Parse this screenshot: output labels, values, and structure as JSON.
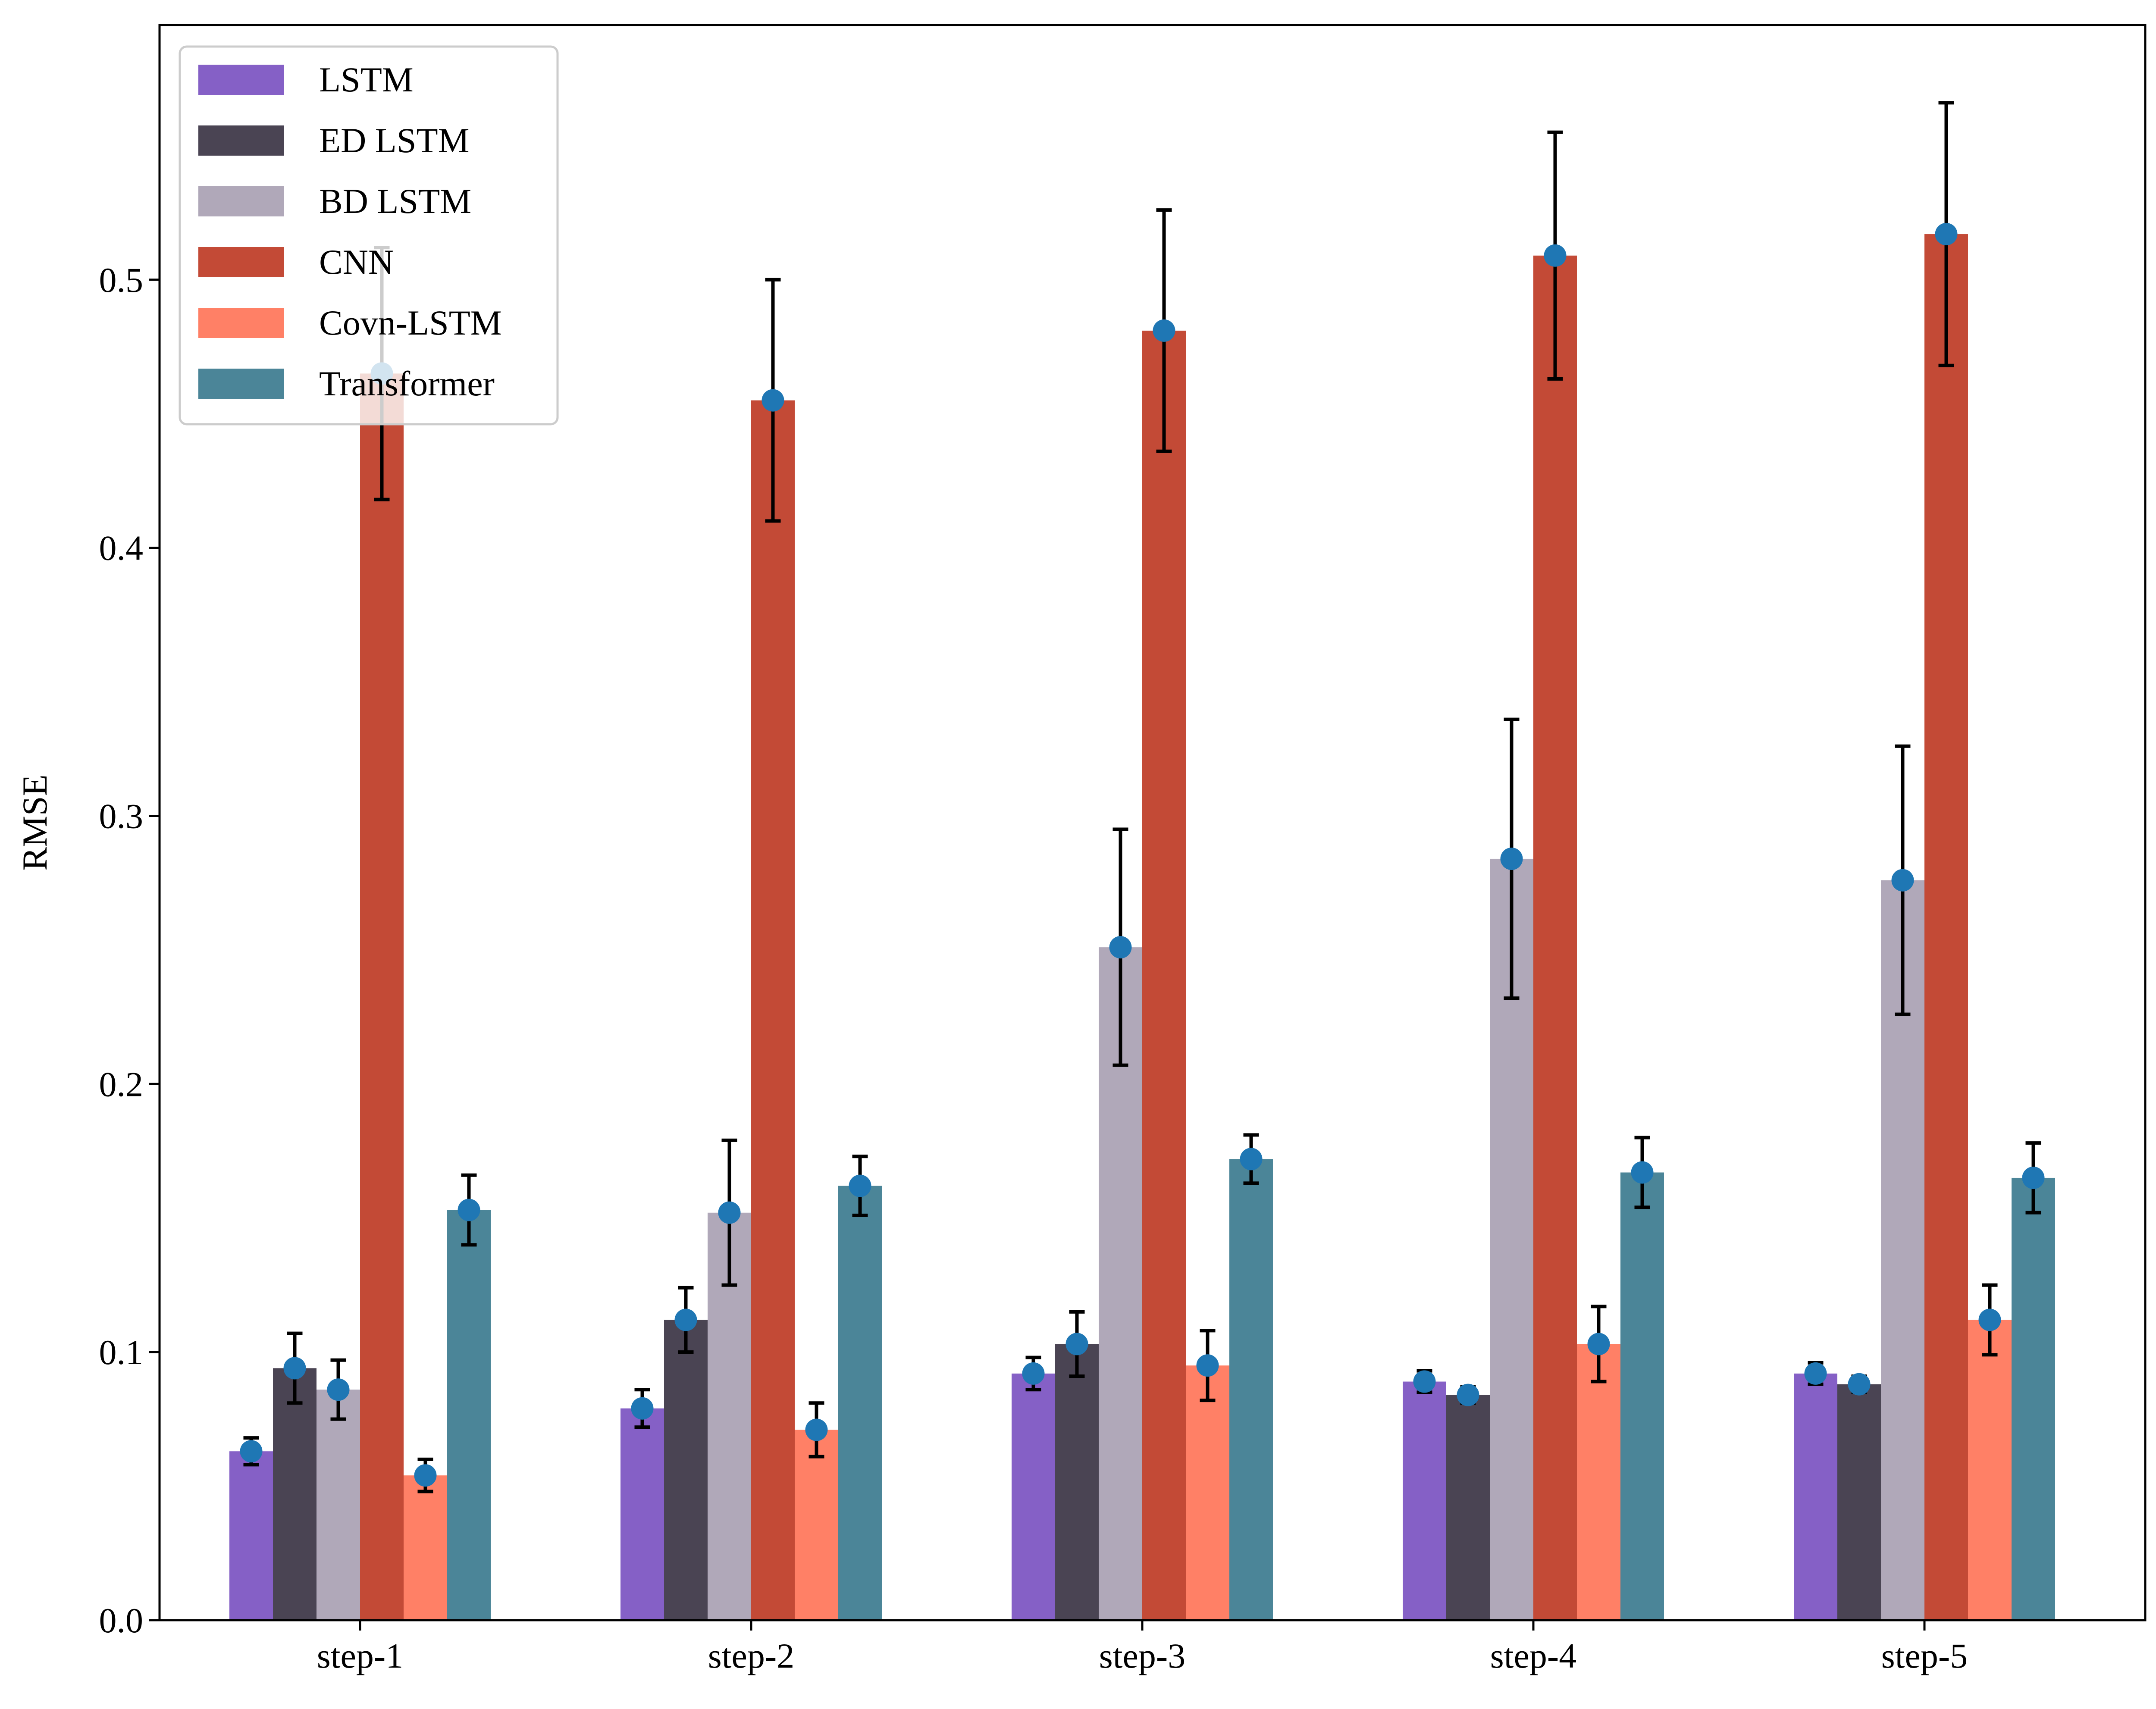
{
  "chart_data": {
    "type": "bar",
    "title": "",
    "xlabel": "",
    "ylabel": "RMSE",
    "ylim": [
      0,
      0.595
    ],
    "yticks": [
      "0.0",
      "0.1",
      "0.2",
      "0.3",
      "0.4",
      "0.5"
    ],
    "categories": [
      "step-1",
      "step-2",
      "step-3",
      "step-4",
      "step-5"
    ],
    "legend_position": "top-left",
    "marker_color": "#1f77b4",
    "series": [
      {
        "name": "LSTM",
        "color": "#8560c6",
        "values": [
          0.063,
          0.079,
          0.092,
          0.089,
          0.092
        ],
        "errors": [
          0.005,
          0.007,
          0.006,
          0.004,
          0.004
        ]
      },
      {
        "name": "ED LSTM",
        "color": "#4a4453",
        "values": [
          0.094,
          0.112,
          0.103,
          0.084,
          0.088
        ],
        "errors": [
          0.013,
          0.012,
          0.012,
          0.003,
          0.003
        ]
      },
      {
        "name": "BD LSTM",
        "color": "#b0a8b9",
        "values": [
          0.086,
          0.152,
          0.251,
          0.284,
          0.276
        ],
        "errors": [
          0.011,
          0.027,
          0.044,
          0.052,
          0.05
        ]
      },
      {
        "name": "CNN",
        "color": "#c34a36",
        "values": [
          0.465,
          0.455,
          0.481,
          0.509,
          0.517
        ],
        "errors": [
          0.047,
          0.045,
          0.045,
          0.046,
          0.049
        ]
      },
      {
        "name": "Covn-LSTM",
        "color": "#ff8066",
        "values": [
          0.054,
          0.071,
          0.095,
          0.103,
          0.112
        ],
        "errors": [
          0.006,
          0.01,
          0.013,
          0.014,
          0.013
        ]
      },
      {
        "name": "Transformer",
        "color": "#4b8598",
        "values": [
          0.153,
          0.162,
          0.172,
          0.167,
          0.165
        ],
        "errors": [
          0.013,
          0.011,
          0.009,
          0.013,
          0.013
        ]
      }
    ]
  }
}
